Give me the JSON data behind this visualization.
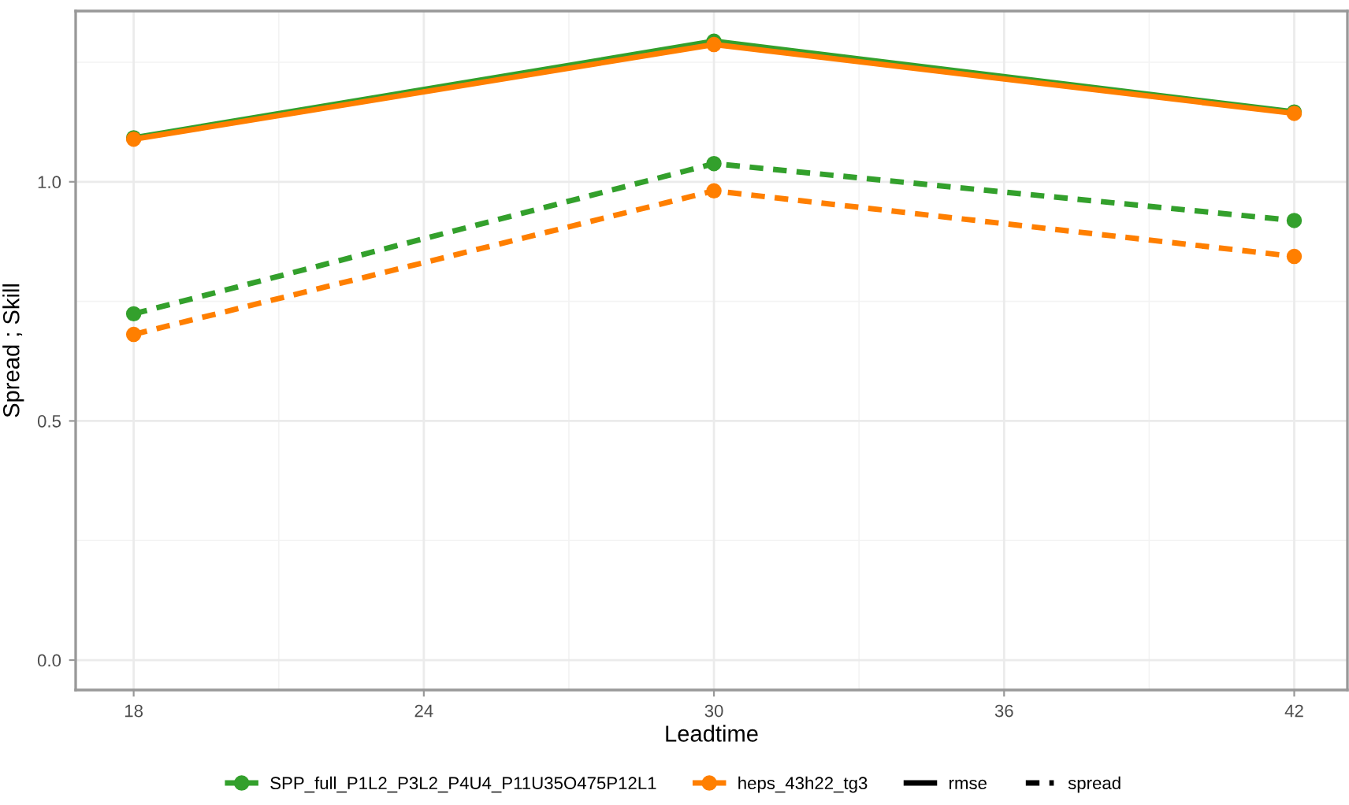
{
  "chart_data": {
    "type": "line",
    "xlabel": "Leadtime",
    "ylabel": "Spread ; Skill",
    "x": [
      18,
      30,
      42
    ],
    "series": [
      {
        "name": "SPP_full_P1L2_P3L2_P4U4_P11U35O475P12L1",
        "color": "#33a02c",
        "values": [
          1.092,
          1.294,
          1.146
        ],
        "line_style": "solid"
      },
      {
        "name": "heps_43h22_tg3",
        "color": "#ff7f00",
        "values": [
          1.089,
          1.287,
          1.143
        ],
        "line_style": "solid"
      },
      {
        "color": "#33a02c",
        "values": [
          0.724,
          1.038,
          0.919
        ],
        "line_style": "dashed"
      },
      {
        "color": "#ff7f00",
        "values": [
          0.681,
          0.981,
          0.844
        ],
        "line_style": "dashed"
      }
    ],
    "annotations": [
      "rmse",
      "spread"
    ],
    "marker": "circle",
    "xlim": [
      16.8,
      43.1
    ],
    "ylim": [
      -0.0625,
      1.357
    ],
    "xticks": [
      18,
      24,
      30,
      36,
      42
    ],
    "yticks": [
      {
        "value": 0,
        "label": "0.0"
      },
      {
        "value": 0.5,
        "label": "0.5"
      },
      {
        "value": 1,
        "label": "1.0"
      }
    ],
    "grid": true,
    "legend": "bottom"
  }
}
